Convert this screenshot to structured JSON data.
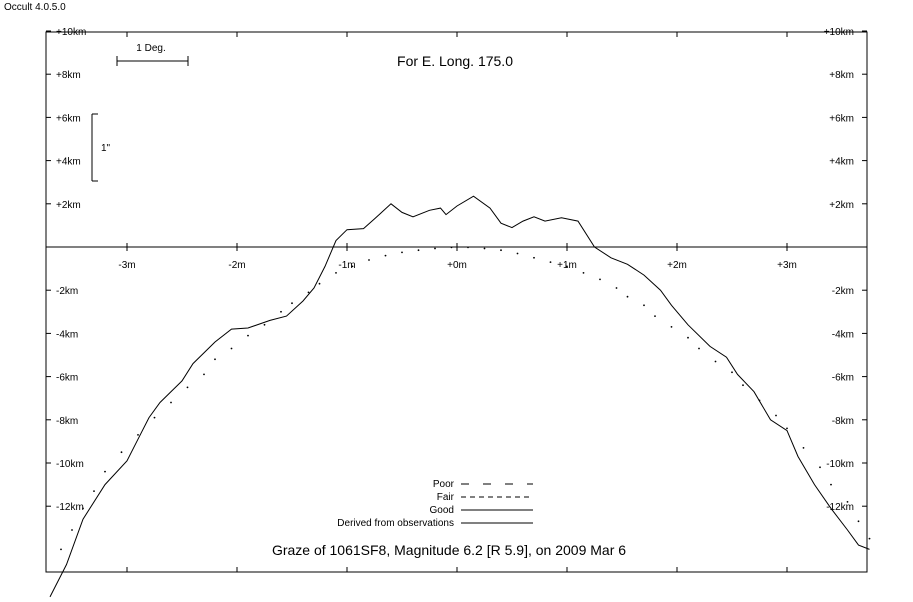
{
  "app": {
    "version": "Occult 4.0.5.0"
  },
  "chart_data": {
    "type": "line",
    "title": "For E. Long. 175.0",
    "caption": "Graze of  1061SF8,  Magnitude 6.2 [R 5.9],  on 2009 Mar  6",
    "xlabel": "",
    "ylabel": "",
    "xlim": [
      -3.7,
      3.75
    ],
    "ylim": [
      -15,
      10
    ],
    "x_ticks": [
      {
        "value": -3,
        "label": "-3m"
      },
      {
        "value": -2,
        "label": "-2m"
      },
      {
        "value": -1,
        "label": "-1m"
      },
      {
        "value": 0,
        "label": "+0m"
      },
      {
        "value": 1,
        "label": "+1m"
      },
      {
        "value": 2,
        "label": "+2m"
      },
      {
        "value": 3,
        "label": "+3m"
      }
    ],
    "y_ticks": [
      {
        "value": 10,
        "label": "+10km"
      },
      {
        "value": 8,
        "label": "+8km"
      },
      {
        "value": 6,
        "label": "+6km"
      },
      {
        "value": 4,
        "label": "+4km"
      },
      {
        "value": 2,
        "label": "+2km"
      },
      {
        "value": -2,
        "label": "-2km"
      },
      {
        "value": -4,
        "label": "-4km"
      },
      {
        "value": -6,
        "label": "-6km"
      },
      {
        "value": -8,
        "label": "-8km"
      },
      {
        "value": -10,
        "label": "-10km"
      },
      {
        "value": -12,
        "label": "-12km"
      }
    ],
    "scale_bars": {
      "horizontal_label": "1 Deg.",
      "vertical_label": "1\""
    },
    "legend": {
      "placement": "bottom-center",
      "entries": [
        {
          "label": "Poor",
          "style": "sparse-dash"
        },
        {
          "label": "Fair",
          "style": "dash"
        },
        {
          "label": "Good",
          "style": "solid"
        },
        {
          "label": "Derived from observations",
          "style": "solid"
        }
      ]
    },
    "series": [
      {
        "style": "solid",
        "points": [
          [
            -3.7,
            -16.2
          ],
          [
            -3.55,
            -14.7
          ],
          [
            -3.4,
            -12.6
          ],
          [
            -3.2,
            -11.0
          ],
          [
            -3.0,
            -9.9
          ],
          [
            -2.9,
            -8.9
          ],
          [
            -2.8,
            -7.9
          ],
          [
            -2.7,
            -7.2
          ],
          [
            -2.5,
            -6.2
          ],
          [
            -2.4,
            -5.4
          ],
          [
            -2.2,
            -4.4
          ],
          [
            -2.05,
            -3.8
          ],
          [
            -1.9,
            -3.75
          ],
          [
            -1.7,
            -3.4
          ],
          [
            -1.55,
            -3.2
          ],
          [
            -1.4,
            -2.5
          ],
          [
            -1.3,
            -1.9
          ],
          [
            -1.2,
            -0.9
          ],
          [
            -1.1,
            0.3
          ],
          [
            -1.0,
            0.8
          ],
          [
            -0.85,
            0.85
          ],
          [
            -0.75,
            1.3
          ],
          [
            -0.6,
            2.0
          ],
          [
            -0.5,
            1.6
          ],
          [
            -0.4,
            1.4
          ],
          [
            -0.25,
            1.7
          ],
          [
            -0.15,
            1.8
          ],
          [
            -0.1,
            1.5
          ],
          [
            0.0,
            1.9
          ],
          [
            0.15,
            2.35
          ],
          [
            0.3,
            1.8
          ],
          [
            0.4,
            1.1
          ],
          [
            0.5,
            0.9
          ],
          [
            0.6,
            1.2
          ],
          [
            0.7,
            1.4
          ],
          [
            0.8,
            1.2
          ],
          [
            0.95,
            1.35
          ],
          [
            1.1,
            1.2
          ],
          [
            1.25,
            0.0
          ],
          [
            1.4,
            -0.5
          ],
          [
            1.55,
            -0.8
          ],
          [
            1.7,
            -1.3
          ],
          [
            1.85,
            -2.0
          ],
          [
            1.95,
            -2.7
          ],
          [
            2.1,
            -3.6
          ],
          [
            2.3,
            -4.6
          ],
          [
            2.45,
            -5.1
          ],
          [
            2.55,
            -5.9
          ],
          [
            2.7,
            -6.7
          ],
          [
            2.85,
            -8.0
          ],
          [
            3.0,
            -8.5
          ],
          [
            3.1,
            -9.7
          ],
          [
            3.25,
            -11.0
          ],
          [
            3.4,
            -12.1
          ],
          [
            3.55,
            -13.1
          ],
          [
            3.65,
            -13.8
          ],
          [
            3.75,
            -14.0
          ]
        ]
      },
      {
        "style": "dotted",
        "points": [
          [
            -3.6,
            -14.0
          ],
          [
            -3.5,
            -13.1
          ],
          [
            -3.4,
            -12.1
          ],
          [
            -3.3,
            -11.3
          ],
          [
            -3.2,
            -10.4
          ],
          [
            -3.05,
            -9.5
          ],
          [
            -2.9,
            -8.7
          ],
          [
            -2.75,
            -7.9
          ],
          [
            -2.6,
            -7.2
          ],
          [
            -2.45,
            -6.5
          ],
          [
            -2.3,
            -5.9
          ],
          [
            -2.2,
            -5.2
          ],
          [
            -2.05,
            -4.7
          ],
          [
            -1.9,
            -4.1
          ],
          [
            -1.75,
            -3.6
          ],
          [
            -1.6,
            -3.0
          ],
          [
            -1.5,
            -2.6
          ],
          [
            -1.35,
            -2.1
          ],
          [
            -1.25,
            -1.7
          ],
          [
            -1.1,
            -1.2
          ],
          [
            -0.95,
            -0.9
          ],
          [
            -0.8,
            -0.6
          ],
          [
            -0.65,
            -0.4
          ],
          [
            -0.5,
            -0.25
          ],
          [
            -0.35,
            -0.15
          ],
          [
            -0.2,
            -0.07
          ],
          [
            -0.05,
            -0.02
          ],
          [
            0.1,
            -0.02
          ],
          [
            0.25,
            -0.07
          ],
          [
            0.4,
            -0.15
          ],
          [
            0.55,
            -0.3
          ],
          [
            0.7,
            -0.5
          ],
          [
            0.85,
            -0.7
          ],
          [
            1.0,
            -0.9
          ],
          [
            1.15,
            -1.2
          ],
          [
            1.3,
            -1.5
          ],
          [
            1.45,
            -1.9
          ],
          [
            1.55,
            -2.3
          ],
          [
            1.7,
            -2.7
          ],
          [
            1.8,
            -3.2
          ],
          [
            1.95,
            -3.7
          ],
          [
            2.1,
            -4.2
          ],
          [
            2.2,
            -4.7
          ],
          [
            2.35,
            -5.3
          ],
          [
            2.5,
            -5.8
          ],
          [
            2.6,
            -6.4
          ],
          [
            2.75,
            -7.1
          ],
          [
            2.9,
            -7.8
          ],
          [
            3.0,
            -8.4
          ],
          [
            3.15,
            -9.3
          ],
          [
            3.3,
            -10.2
          ],
          [
            3.4,
            -11.0
          ],
          [
            3.55,
            -11.8
          ],
          [
            3.65,
            -12.7
          ],
          [
            3.75,
            -13.5
          ]
        ]
      }
    ]
  }
}
